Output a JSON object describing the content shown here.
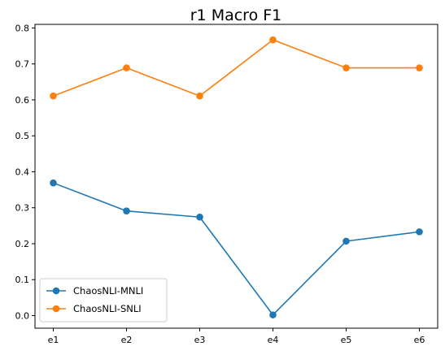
{
  "chart_data": {
    "type": "line",
    "title": "r1 Macro F1",
    "xlabel": "",
    "ylabel": "",
    "categories": [
      "e1",
      "e2",
      "e3",
      "e4",
      "e5",
      "e6"
    ],
    "ylim": [
      -0.035,
      0.81
    ],
    "yticks": [
      0.0,
      0.1,
      0.2,
      0.3,
      0.4,
      0.5,
      0.6,
      0.7,
      0.8
    ],
    "ytick_labels": [
      "0.0",
      "0.1",
      "0.2",
      "0.3",
      "0.4",
      "0.5",
      "0.6",
      "0.7",
      "0.8"
    ],
    "grid": false,
    "legend_position": "lower-left",
    "series": [
      {
        "name": "ChaosNLI-MNLI",
        "color": "#1f77b4",
        "marker": "circle",
        "values": [
          0.369,
          0.291,
          0.274,
          0.002,
          0.207,
          0.233
        ]
      },
      {
        "name": "ChaosNLI-SNLI",
        "color": "#ff7f0e",
        "marker": "circle",
        "values": [
          0.611,
          0.689,
          0.611,
          0.767,
          0.689,
          0.689
        ]
      }
    ]
  }
}
